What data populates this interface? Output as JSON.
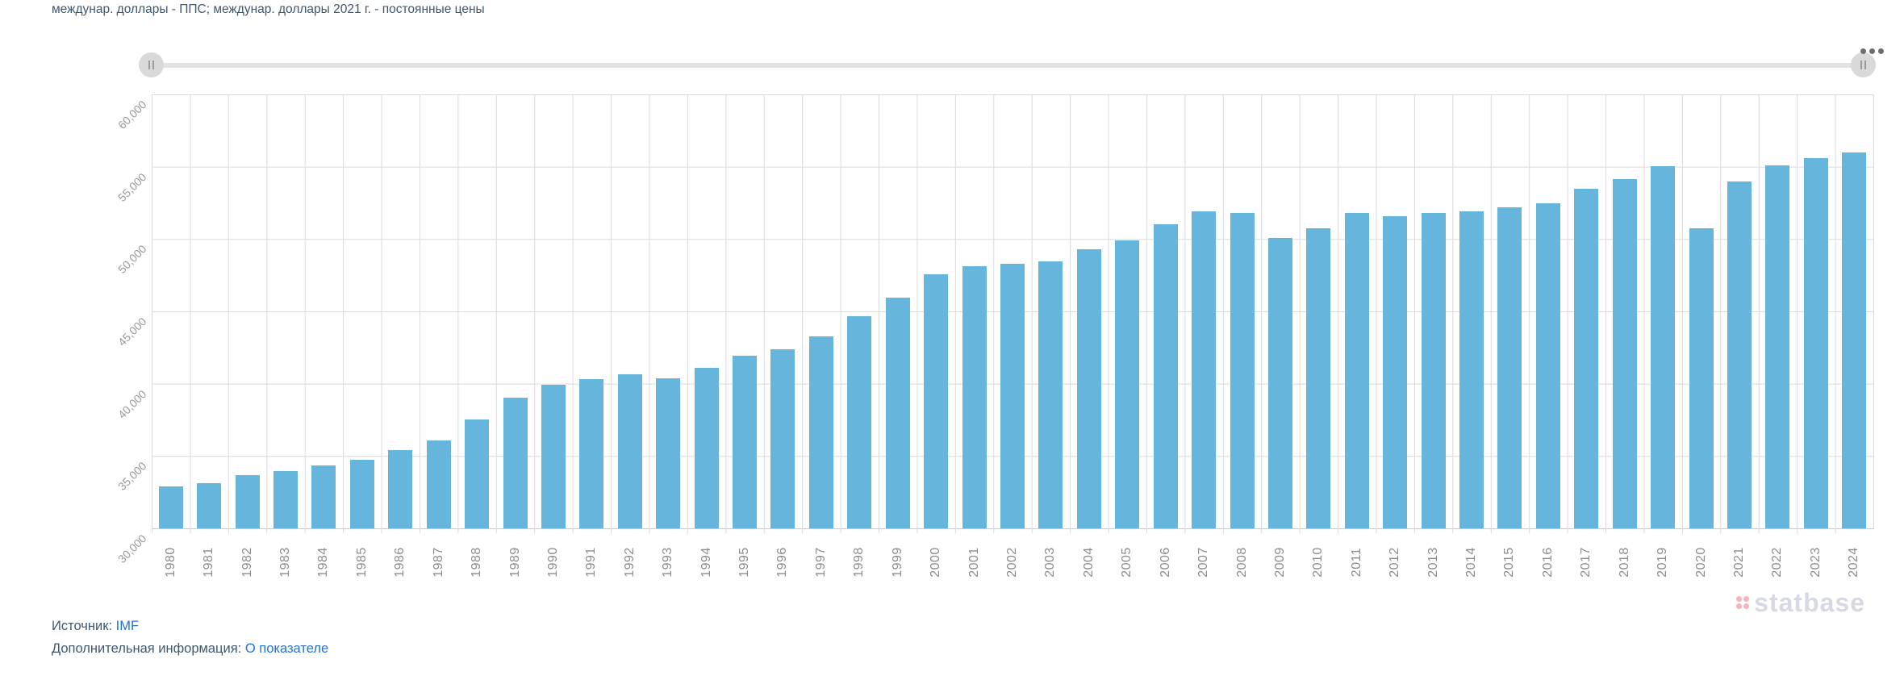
{
  "header": {
    "title": "междунар. доллары - ППС; междунар. доллары 2021 г. - постоянные цены"
  },
  "toolbar": {
    "menu_icon": "ellipsis-menu-icon"
  },
  "navigator": {
    "left_handle_icon": "drag-grip-icon",
    "right_handle_icon": "drag-grip-icon"
  },
  "chart_data": {
    "type": "bar",
    "title": "междунар. доллары - ППС; междунар. доллары 2021 г. - постоянные цены",
    "xlabel": "",
    "ylabel": "",
    "ylim": [
      30000,
      60000
    ],
    "ytick_step": 5000,
    "ytick_labels": [
      "60,000",
      "55,000",
      "50,000",
      "45,000",
      "40,000",
      "35,000",
      "30,000"
    ],
    "grid": true,
    "legend": "none",
    "bar_color": "#66b5dd",
    "categories": [
      "1980",
      "1981",
      "1982",
      "1983",
      "1984",
      "1985",
      "1986",
      "1987",
      "1988",
      "1989",
      "1990",
      "1991",
      "1992",
      "1993",
      "1994",
      "1995",
      "1996",
      "1997",
      "1998",
      "1999",
      "2000",
      "2001",
      "2002",
      "2003",
      "2004",
      "2005",
      "2006",
      "2007",
      "2008",
      "2009",
      "2010",
      "2011",
      "2012",
      "2013",
      "2014",
      "2015",
      "2016",
      "2017",
      "2018",
      "2019",
      "2020",
      "2021",
      "2022",
      "2023",
      "2024"
    ],
    "values": [
      32900,
      33150,
      33700,
      33950,
      34350,
      34750,
      35400,
      36100,
      37550,
      39050,
      39950,
      40300,
      40650,
      40350,
      41100,
      41950,
      42400,
      43300,
      44650,
      45950,
      47550,
      48100,
      48300,
      48450,
      49300,
      49900,
      51000,
      51900,
      51800,
      50050,
      50750,
      51800,
      51600,
      51800,
      51900,
      52200,
      52450,
      53450,
      54150,
      55050,
      50750,
      54000,
      55100,
      55600,
      56000
    ]
  },
  "watermark": {
    "text": "statbase",
    "logo_icon": "statbase-dots-logo"
  },
  "footer": {
    "source_label": "Источник:",
    "source_link_text": "IMF",
    "info_label": "Дополнительная информация:",
    "info_link_text": "О показателе"
  },
  "colors": {
    "ink": "#3e5872",
    "link": "#2273d8",
    "bar": "#66b5dd",
    "grid": "#dadada",
    "axis": "#c9c9c9",
    "xtick": "#8c8c8c",
    "ytick": "#9a9a9a",
    "track": "#e3e3e3",
    "handle": "#d9d9d9",
    "grip": "#9a9a9a",
    "dots": "#6e6e6e",
    "wmtext": "#d6d9e4",
    "wmdot": "rgba(242,84,91,0.45)"
  }
}
